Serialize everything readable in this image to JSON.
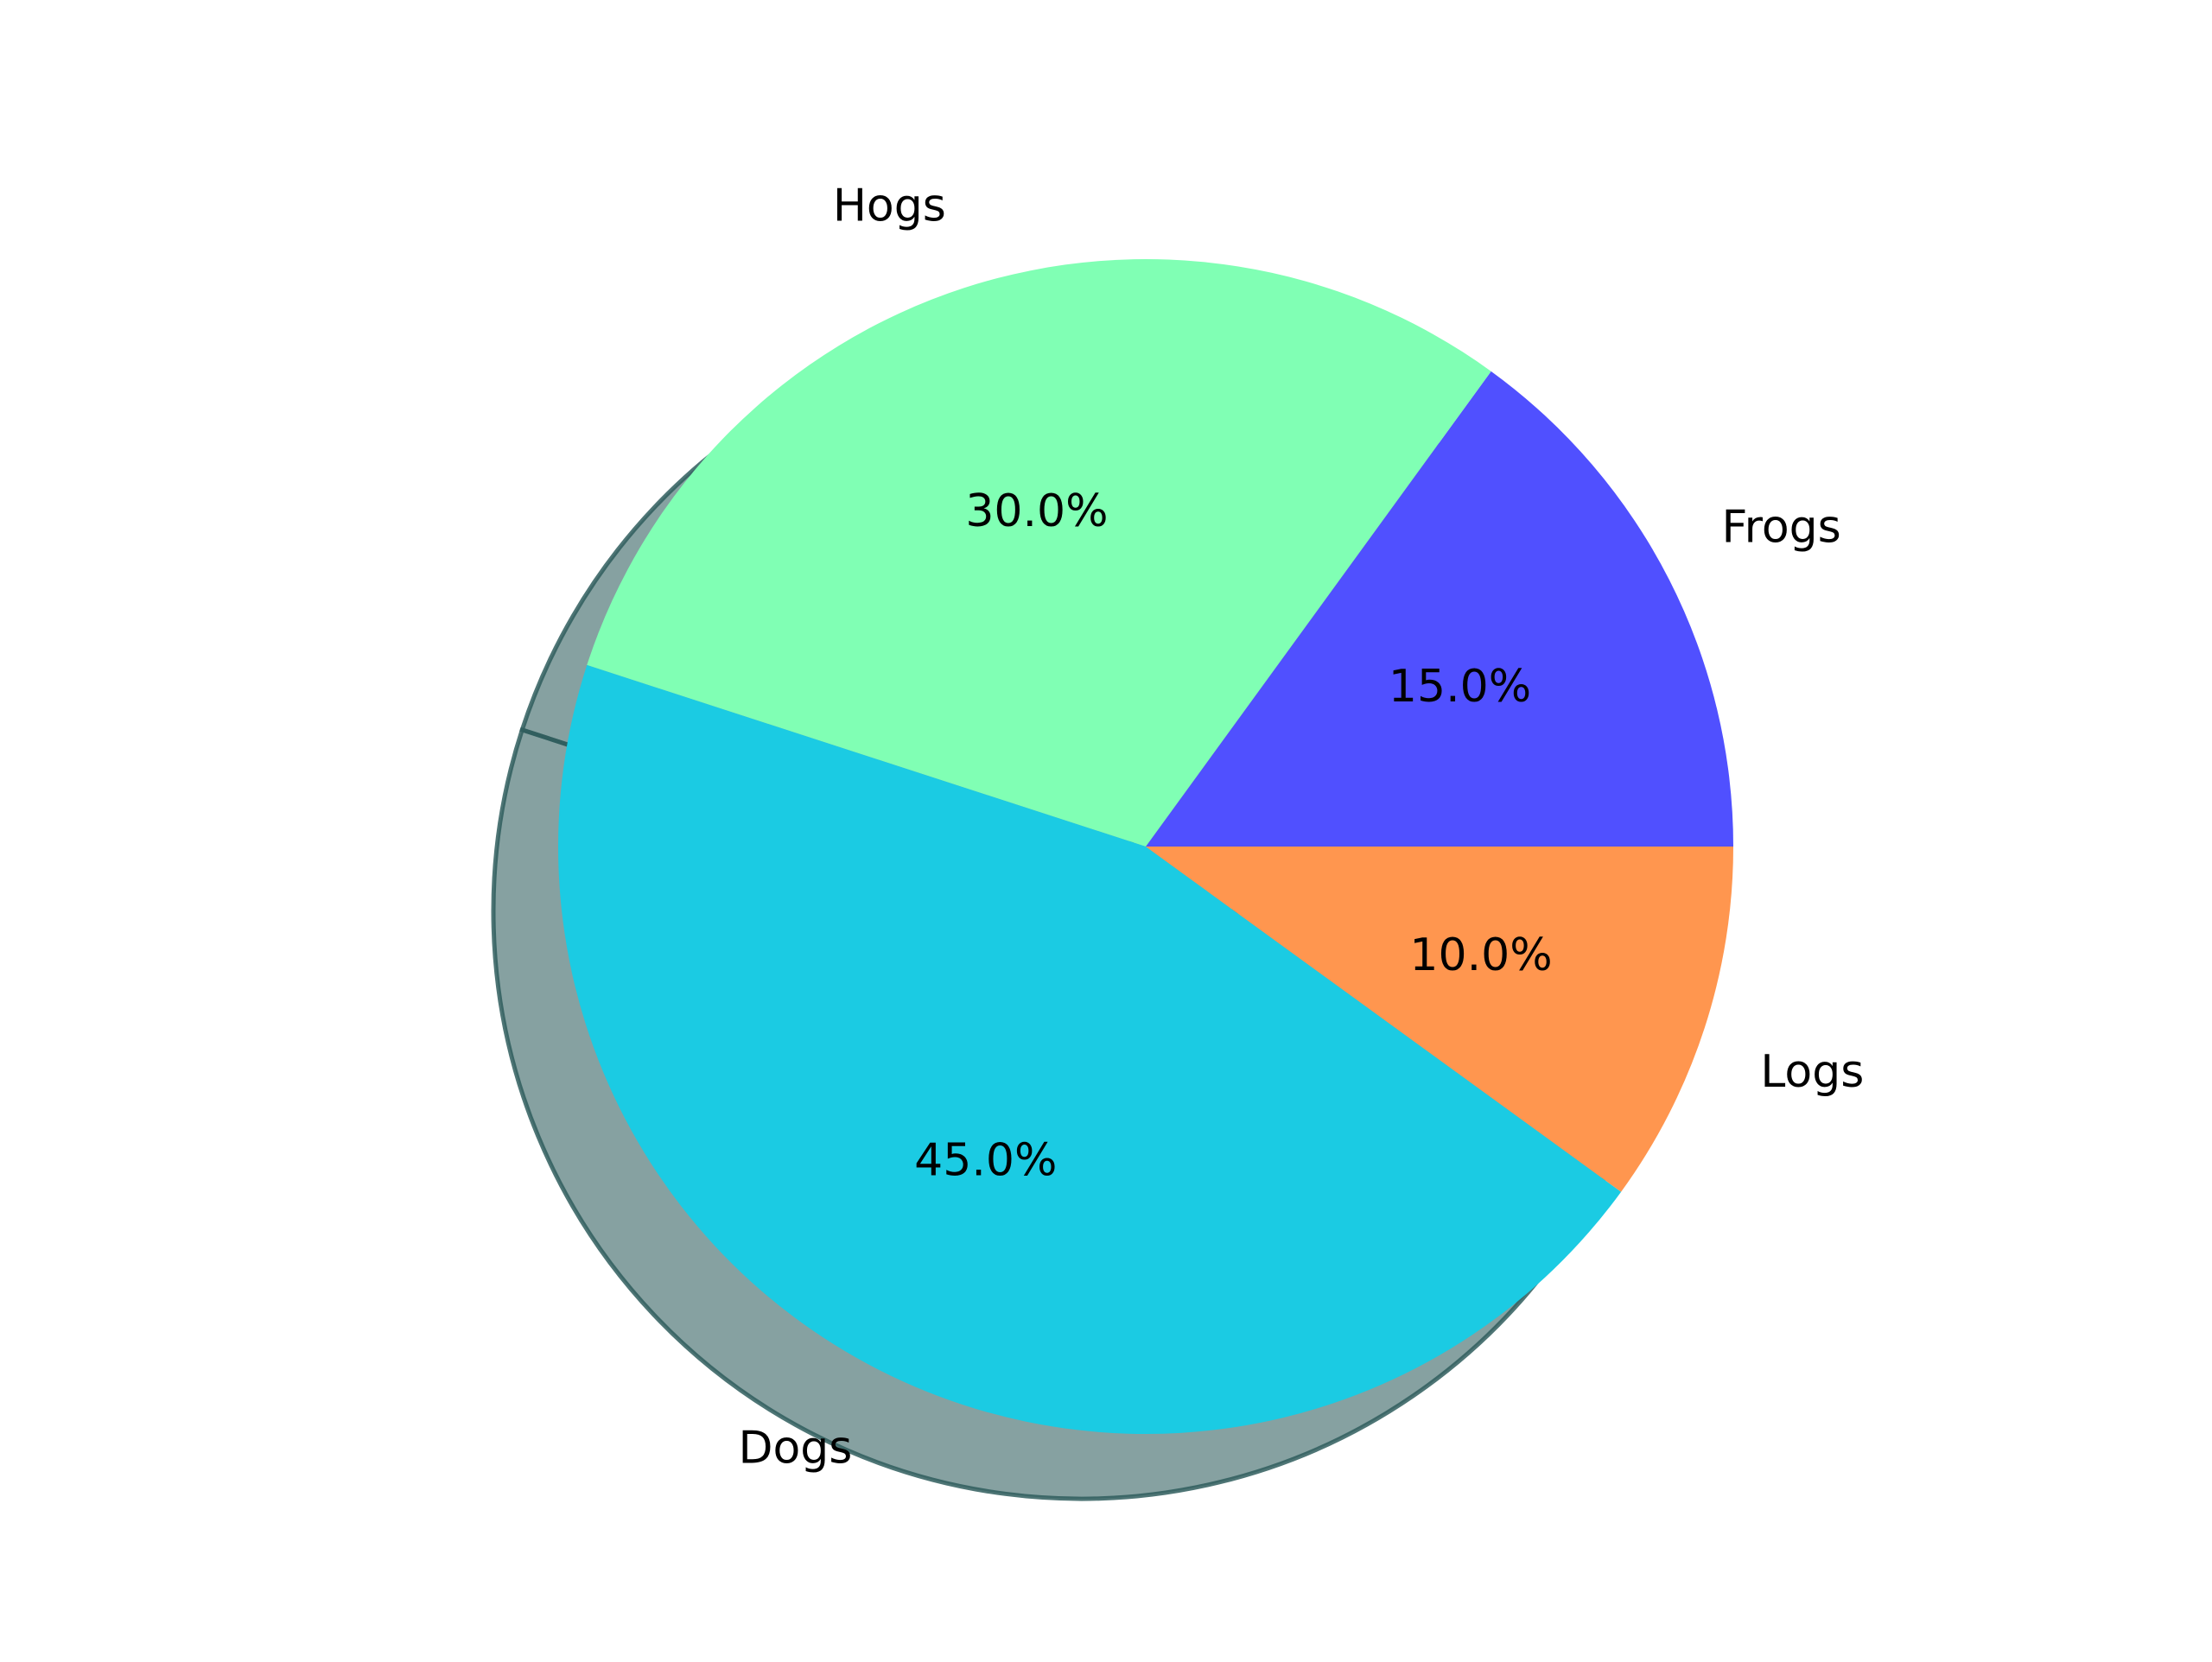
{
  "chart_data": {
    "type": "pie",
    "title": "",
    "start_angle_deg": 0,
    "direction": "counterclockwise",
    "shadow": true,
    "slices": [
      {
        "label": "Frogs",
        "value": 15,
        "pct_label": "15.0%",
        "color": "#5050ff"
      },
      {
        "label": "Hogs",
        "value": 30,
        "pct_label": "30.0%",
        "color": "#80ffb4"
      },
      {
        "label": "Dogs",
        "value": 45,
        "pct_label": "45.0%",
        "color": "#1bcbe3"
      },
      {
        "label": "Logs",
        "value": 10,
        "pct_label": "10.0%",
        "color": "#ff964f"
      }
    ]
  }
}
